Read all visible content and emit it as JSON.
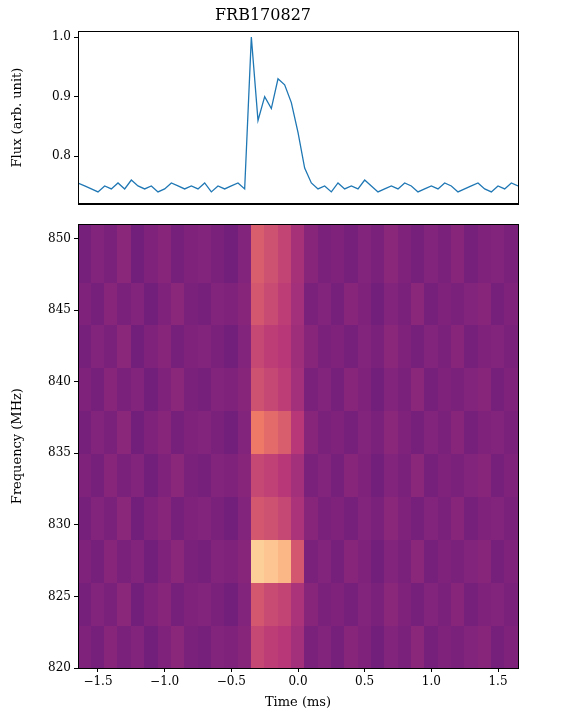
{
  "chart_data": [
    {
      "type": "line",
      "title": "FRB170827",
      "y_label": "Flux (arb. unit)",
      "xlim": [
        -1.65,
        1.65
      ],
      "ylim": [
        0.72,
        1.01
      ],
      "yticks": [
        0.8,
        0.9,
        {
          "value": 1,
          "label": "1.0"
        }
      ],
      "grid": false,
      "tick_labels": "y",
      "color": "#1f77b4",
      "x": [
        -1.65,
        -1.6,
        -1.55,
        -1.5,
        -1.45,
        -1.4,
        -1.35,
        -1.3,
        -1.25,
        -1.2,
        -1.15,
        -1.1,
        -1.05,
        -1.0,
        -0.95,
        -0.9,
        -0.85,
        -0.8,
        -0.75,
        -0.7,
        -0.65,
        -0.6,
        -0.55,
        -0.5,
        -0.45,
        -0.4,
        -0.35,
        -0.3,
        -0.25,
        -0.2,
        -0.15,
        -0.1,
        -0.05,
        0.0,
        0.05,
        0.1,
        0.15,
        0.2,
        0.25,
        0.3,
        0.35,
        0.4,
        0.45,
        0.5,
        0.55,
        0.6,
        0.65,
        0.7,
        0.75,
        0.8,
        0.85,
        0.9,
        0.95,
        1.0,
        1.05,
        1.1,
        1.15,
        1.2,
        1.25,
        1.3,
        1.35,
        1.4,
        1.45,
        1.5,
        1.55,
        1.6,
        1.65
      ],
      "values": [
        0.755,
        0.75,
        0.745,
        0.74,
        0.75,
        0.745,
        0.755,
        0.745,
        0.76,
        0.75,
        0.745,
        0.75,
        0.74,
        0.745,
        0.755,
        0.75,
        0.745,
        0.75,
        0.745,
        0.755,
        0.74,
        0.75,
        0.745,
        0.75,
        0.755,
        0.745,
        1.0,
        0.86,
        0.9,
        0.88,
        0.93,
        0.92,
        0.89,
        0.84,
        0.78,
        0.755,
        0.745,
        0.75,
        0.74,
        0.755,
        0.745,
        0.75,
        0.745,
        0.76,
        0.75,
        0.74,
        0.745,
        0.75,
        0.745,
        0.755,
        0.75,
        0.74,
        0.745,
        0.75,
        0.745,
        0.755,
        0.75,
        0.74,
        0.745,
        0.75,
        0.755,
        0.745,
        0.74,
        0.75,
        0.745,
        0.755,
        0.75
      ]
    },
    {
      "type": "heatmap",
      "x_label": "Time (ms)",
      "y_label": "Frequency (MHz)",
      "xlim": [
        -1.65,
        1.65
      ],
      "ylim": [
        820,
        851
      ],
      "xticks": [
        {
          "value": -1.5,
          "label": "−1.5"
        },
        {
          "value": -1,
          "label": "−1.0"
        },
        {
          "value": -0.5,
          "label": "−0.5"
        },
        {
          "value": 0,
          "label": "0.0"
        },
        {
          "value": 0.5,
          "label": "0.5"
        },
        {
          "value": 1,
          "label": "1.0"
        },
        {
          "value": 1.5,
          "label": "1.5"
        }
      ],
      "yticks": [
        820,
        825,
        830,
        835,
        840,
        845,
        850
      ],
      "grid": false,
      "color": "magma",
      "zlim": [
        0,
        1
      ],
      "x_edges": [
        -1.65,
        -1.55,
        -1.45,
        -1.35,
        -1.25,
        -1.15,
        -1.05,
        -0.95,
        -0.85,
        -0.75,
        -0.65,
        -0.55,
        -0.45,
        -0.35,
        -0.25,
        -0.15,
        -0.05,
        0.05,
        0.15,
        0.25,
        0.35,
        0.45,
        0.55,
        0.65,
        0.75,
        0.85,
        0.95,
        1.05,
        1.15,
        1.25,
        1.35,
        1.45,
        1.55,
        1.65
      ],
      "y_edges": [
        820,
        823,
        826,
        829,
        832,
        835,
        838,
        841,
        844,
        847,
        851
      ],
      "cells": [
        [
          0.36,
          0.34,
          0.38,
          0.35,
          0.37,
          0.33,
          0.36,
          0.39,
          0.35,
          0.34,
          0.37,
          0.36,
          0.38,
          0.55,
          0.52,
          0.5,
          0.45,
          0.35,
          0.37,
          0.34,
          0.38,
          0.36,
          0.33,
          0.37,
          0.35,
          0.39,
          0.34,
          0.36,
          0.35,
          0.37,
          0.38,
          0.34,
          0.36
        ],
        [
          0.34,
          0.37,
          0.35,
          0.39,
          0.33,
          0.36,
          0.38,
          0.34,
          0.36,
          0.37,
          0.35,
          0.33,
          0.37,
          0.6,
          0.56,
          0.54,
          0.47,
          0.38,
          0.35,
          0.36,
          0.34,
          0.37,
          0.35,
          0.39,
          0.36,
          0.34,
          0.37,
          0.35,
          0.38,
          0.34,
          0.36,
          0.37,
          0.35
        ],
        [
          0.36,
          0.34,
          0.38,
          0.35,
          0.37,
          0.33,
          0.36,
          0.39,
          0.35,
          0.34,
          0.37,
          0.36,
          0.38,
          0.9,
          0.88,
          0.85,
          0.6,
          0.35,
          0.37,
          0.34,
          0.38,
          0.36,
          0.33,
          0.37,
          0.35,
          0.39,
          0.34,
          0.36,
          0.35,
          0.37,
          0.38,
          0.34,
          0.36
        ],
        [
          0.34,
          0.37,
          0.35,
          0.39,
          0.33,
          0.36,
          0.38,
          0.34,
          0.36,
          0.37,
          0.35,
          0.33,
          0.37,
          0.6,
          0.58,
          0.55,
          0.47,
          0.38,
          0.35,
          0.36,
          0.34,
          0.37,
          0.35,
          0.39,
          0.36,
          0.34,
          0.37,
          0.35,
          0.38,
          0.34,
          0.36,
          0.37,
          0.35
        ],
        [
          0.36,
          0.34,
          0.38,
          0.35,
          0.37,
          0.33,
          0.36,
          0.39,
          0.35,
          0.34,
          0.37,
          0.36,
          0.38,
          0.55,
          0.53,
          0.5,
          0.45,
          0.35,
          0.37,
          0.34,
          0.38,
          0.36,
          0.33,
          0.37,
          0.35,
          0.39,
          0.34,
          0.36,
          0.35,
          0.37,
          0.38,
          0.34,
          0.36
        ],
        [
          0.34,
          0.37,
          0.35,
          0.39,
          0.33,
          0.36,
          0.38,
          0.34,
          0.36,
          0.37,
          0.35,
          0.33,
          0.37,
          0.7,
          0.66,
          0.62,
          0.5,
          0.38,
          0.35,
          0.36,
          0.34,
          0.37,
          0.35,
          0.39,
          0.36,
          0.34,
          0.37,
          0.35,
          0.38,
          0.34,
          0.36,
          0.37,
          0.35
        ],
        [
          0.36,
          0.34,
          0.38,
          0.35,
          0.37,
          0.33,
          0.36,
          0.39,
          0.35,
          0.34,
          0.37,
          0.36,
          0.38,
          0.58,
          0.55,
          0.52,
          0.45,
          0.35,
          0.37,
          0.34,
          0.38,
          0.36,
          0.33,
          0.37,
          0.35,
          0.39,
          0.34,
          0.36,
          0.35,
          0.37,
          0.38,
          0.34,
          0.36
        ],
        [
          0.34,
          0.37,
          0.35,
          0.39,
          0.33,
          0.36,
          0.38,
          0.34,
          0.36,
          0.37,
          0.35,
          0.33,
          0.37,
          0.55,
          0.52,
          0.5,
          0.44,
          0.38,
          0.35,
          0.36,
          0.34,
          0.37,
          0.35,
          0.39,
          0.36,
          0.34,
          0.37,
          0.35,
          0.38,
          0.34,
          0.36,
          0.37,
          0.35
        ],
        [
          0.36,
          0.34,
          0.38,
          0.35,
          0.37,
          0.33,
          0.36,
          0.39,
          0.35,
          0.34,
          0.37,
          0.36,
          0.38,
          0.6,
          0.56,
          0.52,
          0.45,
          0.35,
          0.37,
          0.34,
          0.38,
          0.36,
          0.33,
          0.37,
          0.35,
          0.39,
          0.34,
          0.36,
          0.35,
          0.37,
          0.38,
          0.34,
          0.36
        ],
        [
          0.34,
          0.37,
          0.35,
          0.39,
          0.33,
          0.36,
          0.38,
          0.34,
          0.36,
          0.37,
          0.35,
          0.33,
          0.37,
          0.62,
          0.58,
          0.54,
          0.46,
          0.38,
          0.35,
          0.36,
          0.34,
          0.37,
          0.35,
          0.39,
          0.36,
          0.34,
          0.37,
          0.35,
          0.38,
          0.34,
          0.36,
          0.37,
          0.35
        ]
      ]
    }
  ]
}
